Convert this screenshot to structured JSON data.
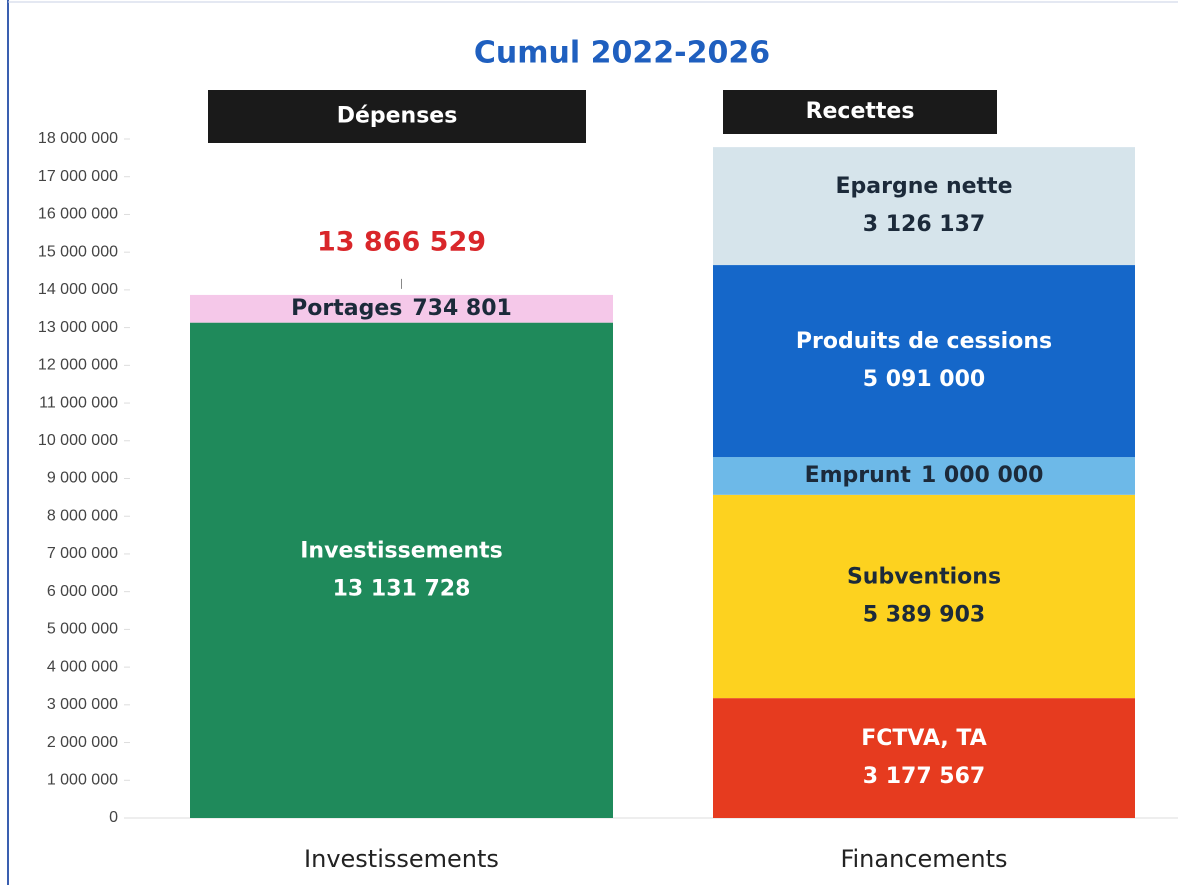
{
  "chart_data": {
    "type": "stacked_bar",
    "title": "Cumul 2022-2026",
    "headers": [
      "Dépenses",
      "Recettes"
    ],
    "categories": [
      "Investissements",
      "Financements"
    ],
    "series": [
      {
        "name": "Investissements",
        "color": "#1f8a5b",
        "values": [
          13131728,
          null
        ],
        "value_labels": [
          "13 131 728",
          null
        ]
      },
      {
        "name": "Portages",
        "color": "#f5c8e9",
        "values": [
          734801,
          null
        ],
        "value_labels": [
          "734 801",
          null
        ]
      },
      {
        "name": "FCTVA, TA",
        "color": "#e63b1f",
        "values": [
          null,
          3177567
        ],
        "value_labels": [
          null,
          "3 177 567"
        ]
      },
      {
        "name": "Subventions",
        "color": "#fdd21f",
        "values": [
          null,
          5389903
        ],
        "value_labels": [
          null,
          "5 389 903"
        ]
      },
      {
        "name": "Emprunt",
        "color": "#6db9e8",
        "values": [
          null,
          1000000
        ],
        "value_labels": [
          null,
          "1 000 000"
        ]
      },
      {
        "name": "Produits de cessions",
        "color": "#1567c9",
        "values": [
          null,
          5091000
        ],
        "value_labels": [
          null,
          "5 091 000"
        ]
      },
      {
        "name": "Epargne nette",
        "color": "#d6e4eb",
        "values": [
          null,
          3126137
        ],
        "value_labels": [
          null,
          "3 126 137"
        ]
      }
    ],
    "totals": [
      13866529,
      null
    ],
    "total_labels": [
      "13 866 529",
      null
    ],
    "ylim": [
      0,
      18000000
    ],
    "yticks": [
      0,
      {
        "value": 1000000,
        "label": "1 000 000"
      },
      {
        "value": 2000000,
        "label": "2 000 000"
      },
      {
        "value": 3000000,
        "label": "3 000 000"
      },
      {
        "value": 4000000,
        "label": "4 000 000"
      },
      {
        "value": 5000000,
        "label": "5 000 000"
      },
      {
        "value": 6000000,
        "label": "6 000 000"
      },
      {
        "value": 7000000,
        "label": "7 000 000"
      },
      {
        "value": 8000000,
        "label": "8 000 000"
      },
      {
        "value": 9000000,
        "label": "9 000 000"
      },
      {
        "value": 10000000,
        "label": "10 000 000"
      },
      {
        "value": 11000000,
        "label": "11 000 000"
      },
      {
        "value": 12000000,
        "label": "12 000 000"
      },
      {
        "value": 13000000,
        "label": "13 000 000"
      },
      {
        "value": 14000000,
        "label": "14 000 000"
      },
      {
        "value": 15000000,
        "label": "15 000 000"
      },
      {
        "value": 16000000,
        "label": "16 000 000"
      },
      {
        "value": 17000000,
        "label": "17 000 000"
      },
      {
        "value": 18000000,
        "label": "18 000 000"
      }
    ]
  }
}
